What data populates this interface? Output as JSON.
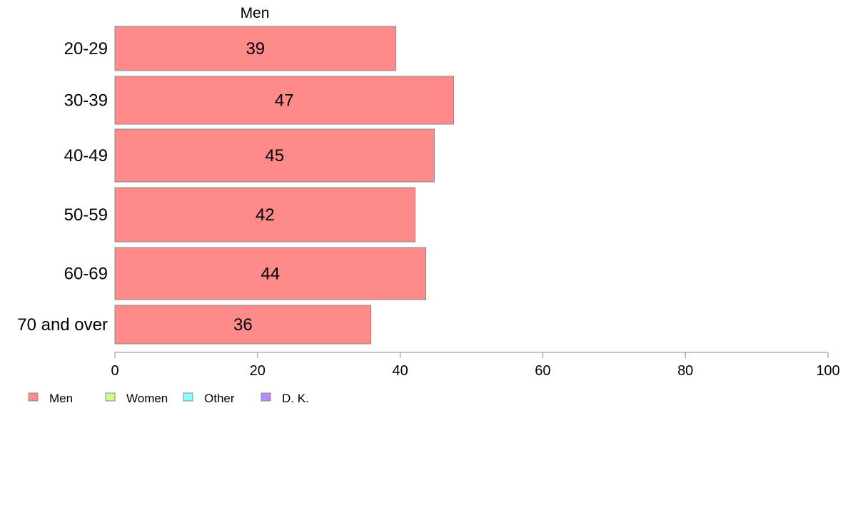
{
  "chart_data": {
    "type": "bar",
    "orientation": "horizontal",
    "stacked": true,
    "categories": [
      "20-29",
      "30-39",
      "40-49",
      "50-59",
      "60-69",
      "70 and over"
    ],
    "series": [
      {
        "name": "Men",
        "values": [
          39.4,
          47.5,
          44.8,
          42.1,
          43.6,
          35.9
        ],
        "labels": [
          "39",
          "47",
          "45",
          "42",
          "44",
          "36"
        ],
        "color": "#ff8a8a"
      },
      {
        "name": "Women",
        "values": [
          0,
          0,
          0,
          0,
          0,
          0
        ],
        "labels": [
          "",
          "",
          "",
          "",
          "",
          ""
        ],
        "color": "#ccff88"
      },
      {
        "name": "Other",
        "values": [
          0,
          0,
          0,
          0,
          0,
          0
        ],
        "labels": [
          "",
          "",
          "",
          "",
          "",
          ""
        ],
        "color": "#88ffff"
      },
      {
        "name": "D. K.",
        "values": [
          0,
          0,
          0,
          0,
          0,
          0
        ],
        "labels": [
          "",
          "",
          "",
          "",
          "",
          ""
        ],
        "color": "#bb88ff"
      }
    ],
    "top_label": "Men",
    "xlim": [
      0,
      100
    ],
    "xticks": [
      0,
      20,
      40,
      60,
      80,
      100
    ],
    "xlabel": "",
    "ylabel": "",
    "grid": false,
    "legend_position": "bottom-left"
  }
}
